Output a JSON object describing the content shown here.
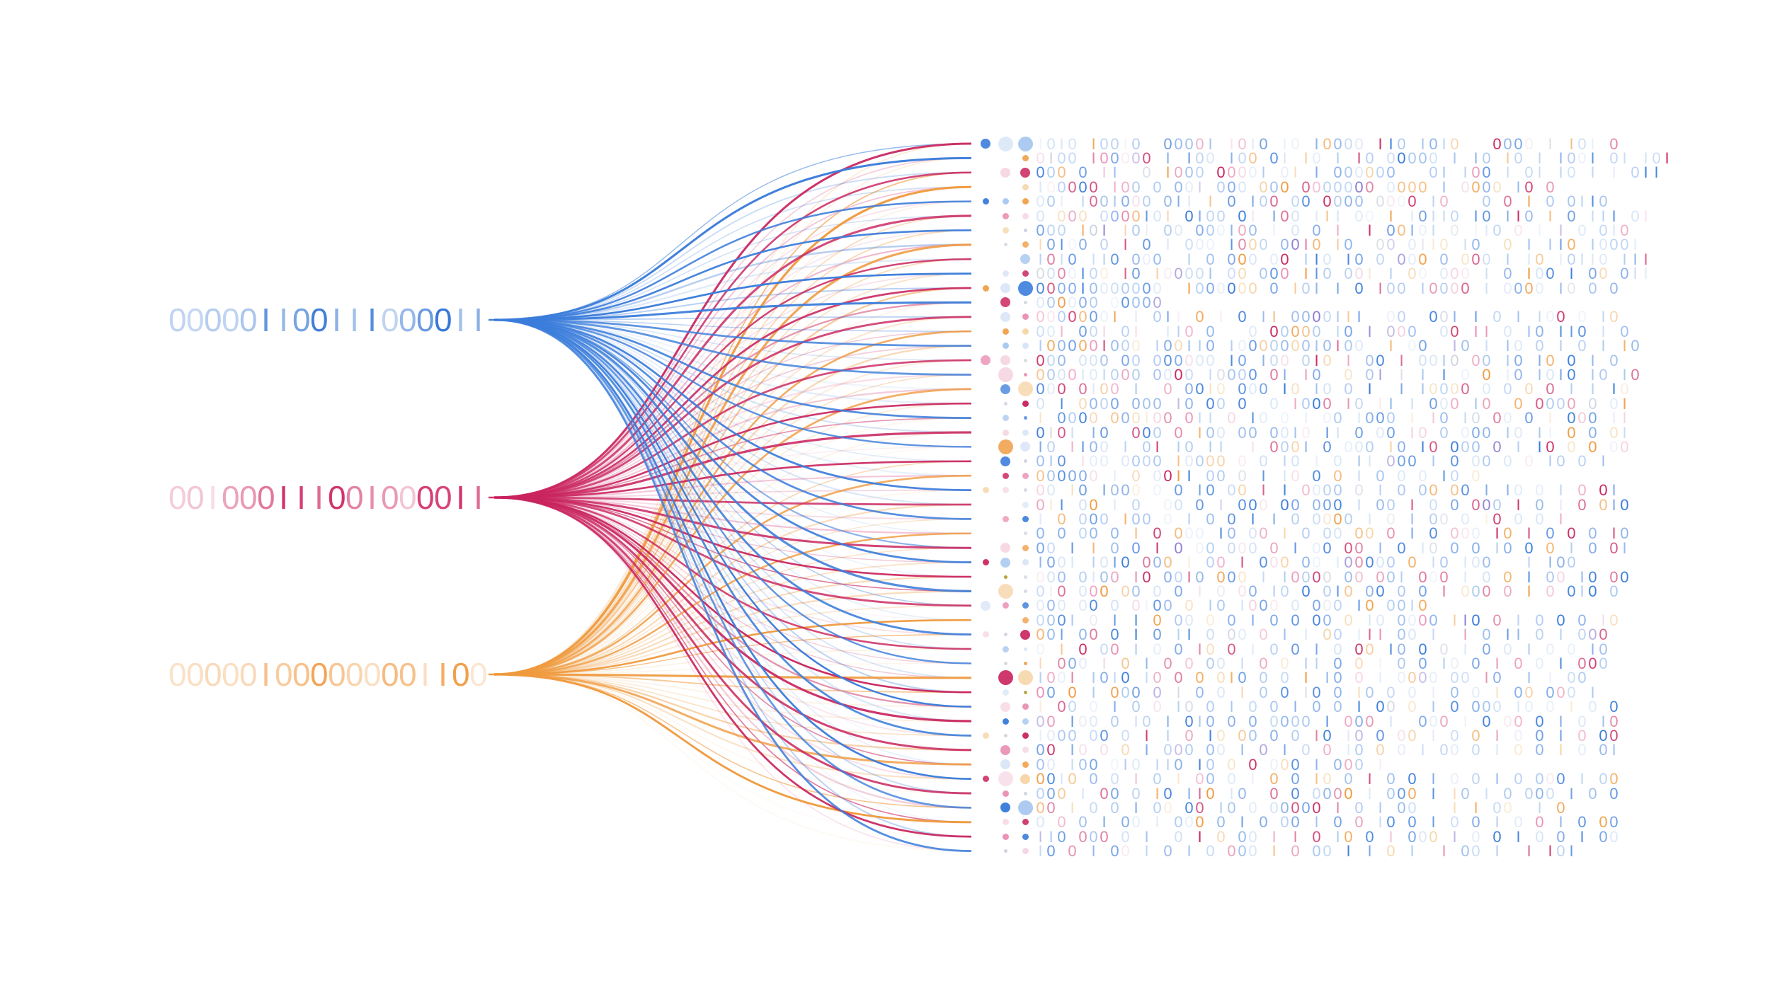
{
  "palette": {
    "blue": "#3b7ddb",
    "blue_mid": "#78a4e8",
    "blue_light": "#aac9f0",
    "blue_pale": "#d9e5f7",
    "crimson": "#c9245e",
    "pink": "#ea8fb4",
    "pink_pale": "#f5d7e3",
    "orange": "#ef9a3e",
    "orange_light": "#f5d4a6",
    "purple": "#8b79cf",
    "gray": "#ccd2de",
    "olive": "#b5a23c"
  },
  "sources": [
    {
      "name": "blue-binary-string",
      "color": "#2f72d4",
      "bits": "000001100111000011",
      "char_opacity": [
        0.3,
        0.28,
        0.35,
        0.3,
        0.4,
        0.75,
        0.5,
        0.65,
        0.9,
        0.55,
        0.45,
        0.8,
        0.3,
        0.5,
        0.7,
        0.95,
        0.45,
        0.55
      ]
    },
    {
      "name": "crimson-binary-string",
      "color": "#cf1d5d",
      "bits": "001000111001000011",
      "char_opacity": [
        0.22,
        0.25,
        0.15,
        0.4,
        0.45,
        0.6,
        0.9,
        0.85,
        0.65,
        0.9,
        0.55,
        0.5,
        0.45,
        0.25,
        0.85,
        0.82,
        0.9,
        0.65
      ]
    },
    {
      "name": "orange-binary-string",
      "color": "#ef8f2e",
      "bits": "000001000000001100",
      "char_opacity": [
        0.25,
        0.28,
        0.33,
        0.28,
        0.33,
        0.55,
        0.45,
        0.55,
        0.8,
        0.5,
        0.38,
        0.28,
        0.6,
        0.55,
        0.28,
        0.72,
        0.85,
        0.22
      ]
    }
  ],
  "rows": [
    {
      "dots": [
        "b2",
        "c3",
        "B3"
      ],
      "bits": "1010 10010  00001 1010 10 10000 110 1010   0000 1 101 0"
    },
    {
      "dots": [
        "o1"
      ],
      "bits": "0100 100000 1 100 100 01 10 1 10 00000 1 10 10 1 1001 01 101"
    },
    {
      "dots": [
        "p2",
        "r2"
      ],
      "bits": "000 0 11  0 1000 00001 01 1 000000   01 100 1 01 10 1 1 011"
    },
    {
      "dots": [
        "O1"
      ],
      "bits": "100000 100 0 001 000 000 0000000 0000 1 0000 10 0"
    },
    {
      "dots": [
        "b1",
        "B1",
        "o1"
      ],
      "bits": "001 1001000 011 1 0 100 00 0000 0000 10   0 0 1 0 0110"
    },
    {
      "dots": [
        "R1",
        "p1"
      ],
      "bits": "0 000 0000101 0100 01 100 111 00 1 10110 10 110 1 0 111 01"
    },
    {
      "dots": [
        "O1",
        "g0"
      ],
      "bits": "000 101 101 00 000100 1 0 0 1  1 00101 0 110 0 1 1 0 010"
    },
    {
      "dots": [
        "g0",
        "o1"
      ],
      "bits": "10100 0 1 0 1 000 1000 0010 10  00 0110 10  0 1 110 10001"
    },
    {
      "dots": [
        "B2"
      ],
      "bits": "1010 110 000  1 0 000 00 110 10 0 000 0 000 1 10 10110 111"
    },
    {
      "dots": [
        "c1",
        "r1"
      ],
      "bits": "0000100 10 100001 00 000 110 001 1 00 000 1 0 100 1 00 011"
    },
    {
      "dots": [
        "o1",
        "c2",
        "b3"
      ],
      "bits": "000010000000  1000000 0 101 1 0 100 10000 1 0000 10 0 0"
    },
    {
      "dots": [
        "r2",
        "g0"
      ],
      "bits": "000000 00000"
    },
    {
      "dots": [
        "c2",
        "R1"
      ],
      "bits": "00000001 1 011 0 1 0 11 0000111  00  001 1 0 1 100 0 10"
    },
    {
      "dots": [
        "o1",
        "O1"
      ],
      "bits": "001 001 01  110 0   0 00000 10 1 000  00 11 0 10 110 1 0"
    },
    {
      "dots": [
        "B1",
        "c1"
      ],
      "bits": "1000001000 100110 1000000010100  1 00  10 1 10 0 1 0 1 10"
    },
    {
      "dots": [
        "R2",
        "p2",
        "g0"
      ],
      "bits": "000 000 00 000000 10 100 010 1 00 1 0010 00 10 10 0 1 0"
    },
    {
      "dots": [
        "p3",
        "R0"
      ],
      "bits": "0000101000 0000 10000 01 10  0 01 1 1 1 0 0 10 1010 10 10"
    },
    {
      "dots": [
        "b2",
        "O3"
      ],
      "bits": "000 0100 1  0 0010 000 10 10 0 1  1 10000 0 0 0 0 1 1 10"
    },
    {
      "dots": [
        "g0",
        "r1"
      ],
      "bits": "0 1 0000 000 10 00 0  0 1000 10 11 1 000 10  0 0000 0 01"
    },
    {
      "dots": [
        "B1",
        "b0"
      ],
      "bits": "1 0000 000100 011 0 10 0 1 00 1000 1 10 10 00 0 1 000 11"
    },
    {
      "dots": [
        "p1",
        "c1"
      ],
      "bits": "0101 10  000 0 100 00 0010 11 0 00 10 0 000 10 11 0 0 01"
    },
    {
      "dots": [
        "o3",
        "c2"
      ],
      "bits": "10 1100 1 01 10 11  1 0001 0 000 10 10 000 0 1 10 0 0 00"
    },
    {
      "dots": [
        "b2",
        "g0"
      ],
      "bits": "010 100 0000 10000 0 0 10 1 0 11 000 1 0 00 0 0 10 0 1"
    },
    {
      "dots": [
        "r1",
        "R1"
      ],
      "bits": "000000 1 0 0011 00 0 1 10 0 0 1 0 0 0 10 0"
    },
    {
      "dots": [
        "O1",
        "p1",
        "g0"
      ],
      "bits": "00 10 1000 0 0 10 00 1 1 0000 0 1 0 00 00 1 10 0 1 0 01"
    },
    {
      "dots": [
        "c1"
      ],
      "bits": "011 00 1 0  00 0 1 000 00 000 1 00 1 0 0 000 1 0 1 0 010"
    },
    {
      "dots": [
        "R1",
        "b1"
      ],
      "bits": "1 0 000 100 0 1 0 0 1 1 0 0000 1 0 1 00 0 10 0 0 1"
    },
    {
      "dots": [
        "g0"
      ],
      "bits": "0 0 00 0 1 0 000 10 00 1 0 00 00 0 1 0 000 10 1 0 0 0 10"
    },
    {
      "dots": [
        "p2",
        "o1"
      ],
      "bits": "00 1 1 0 0 1 0 00 000 0 1 00 00 1 0 10 0 0 10 0 0 1 0 01"
    },
    {
      "dots": [
        "r1",
        "B2",
        "c1"
      ],
      "bits": "1001 1010 000 1 00 1 000 00 100000 0 10 100   1 100"
    },
    {
      "dots": [
        "y0",
        "g0"
      ],
      "bits": "000 0100 10 0010 000 1 10000 00 001 000 1 0 0 1 00 10 00"
    },
    {
      "dots": [
        "O3",
        "g0"
      ],
      "bits": "010 000 00 0 0 1 0 00 10 0 010 00 0 0 1 000 0 1 0 010 0"
    },
    {
      "dots": [
        "c2",
        "R1",
        "b1"
      ],
      "bits": "000 00 0 0100 0 10 1000 0 000 10 0010"
    },
    {
      "dots": [
        "o1"
      ],
      "bits": "0001 0 1 1 0 00 0 0 1 0 0 00 0 10 0000 110 0 1 0 0 0 10"
    },
    {
      "dots": [
        "p1",
        "g0",
        "r2"
      ],
      "bits": "001 00 0 1 0 11 0 00 0 1 1 00 111 00 1  1 0 11 0 1 000"
    },
    {
      "dots": [
        "B1",
        "c0"
      ],
      "bits": "0 1 0 00 1 0 0 10 0 1 0 0 1 0 00 10 0 0 1 0 0 1 0 0 10"
    },
    {
      "dots": [
        "g0",
        "o0"
      ],
      "bits": "1 000 1 0 1 0 0 00 1 0 0 11 0 0 1 0 0 10 0 1 0 0 1 000"
    },
    {
      "dots": [
        "r3",
        "O3"
      ],
      "bits": "1001 1010 10 0 0 010 0 0 1 10 0 1 0000 00 10  1 1 00"
    },
    {
      "dots": [
        "c1",
        "y0"
      ],
      "bits": "00 0 1 000 0 1 0 0 1 0 0 10 0 10 0 0 1 0 0 1 00 000 1"
    },
    {
      "dots": [
        "p2",
        "R1"
      ],
      "bits": "1 00 0 1 0 0 10 0 1 0 0 1 0 0 1 00 0 1 0 000 10 0 1 0 0"
    },
    {
      "dots": [
        "b1",
        "B1"
      ],
      "bits": "00 100 0 10 1 010 0 0 0000 1 000 1  000 1 0 00 0 1 0 10"
    },
    {
      "dots": [
        "O1",
        "g0",
        "r1"
      ],
      "bits": "1000 00 0 1 1 0 10 00 0 0 10 10 0 00 1 0 0 1 0 0 1 0 00"
    },
    {
      "dots": [
        "R2",
        "p1"
      ],
      "bits": "00 10 0 0 1 000 00 1 0 1 0 0 10 0 0 1 00 0 1 0 0 1 0 01"
    },
    {
      "dots": [
        "c2",
        "o1"
      ],
      "bits": "00 100 010 110 10 0 0 000 1 000 1"
    },
    {
      "dots": [
        "r1",
        "p3",
        "O2"
      ],
      "bits": "0010 0 0 1 0 1 00 0 1 0 0 10 0 1 0 0 1 0 0 1 0 000 1 00"
    },
    {
      "dots": [
        "R1",
        "g0"
      ],
      "bits": "000 1 00 0 10 110 10  0 0 0000 1 000 1 10 1 0 000 1 0 0"
    },
    {
      "dots": [
        "b2",
        "B3"
      ],
      "bits": "00 1 0 0 1 00 00 10 0 00000 1 0 1 00   1 1 00  1 0"
    },
    {
      "dots": [
        "p1",
        "r1"
      ],
      "bits": "0 0 0 1 00 1 000 0 1 0 00 1 0 0 10 0 1 0 0 1 0 0 1 0 00"
    },
    {
      "dots": [
        "R1",
        "b1"
      ],
      "bits": "110 000 0 1  0 1 0 00 1 1 0 10 0 1 000 1 0 0 1 0 0 1 00"
    },
    {
      "dots": [
        "g0",
        "p1"
      ],
      "bits": "10 0 1 00 1 0 1 0 000 1 0 00 1 1 0 1  1 00 1  1 101"
    }
  ]
}
